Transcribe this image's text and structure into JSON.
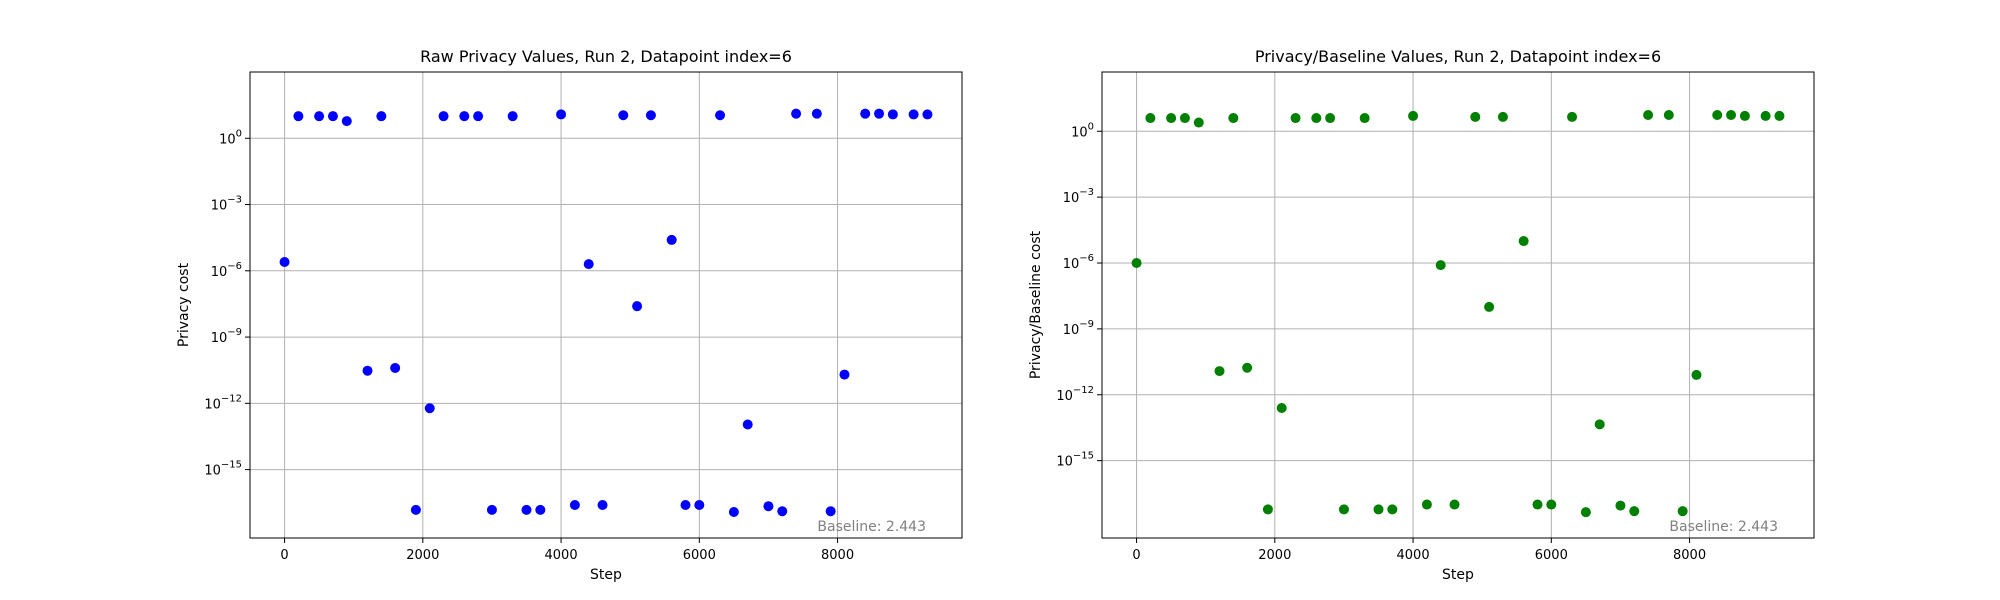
{
  "chart_data": [
    {
      "type": "scatter",
      "title": "Raw Privacy Values, Run 2, Datapoint index=6",
      "xlabel": "Step",
      "ylabel": "Privacy cost",
      "yscale": "log",
      "xlim": [
        -500,
        9800
      ],
      "ylim": [
        8e-19,
        1000
      ],
      "xticks": [
        0,
        2000,
        4000,
        6000,
        8000
      ],
      "xtick_labels": [
        "0",
        "2000",
        "4000",
        "6000",
        "8000"
      ],
      "yticks": [
        {
          "value": 1,
          "base": "10",
          "exp": "0"
        },
        {
          "value": 0.001,
          "base": "10",
          "exp": "−3"
        },
        {
          "value": 1e-06,
          "base": "10",
          "exp": "−6"
        },
        {
          "value": 1e-09,
          "base": "10",
          "exp": "−9"
        },
        {
          "value": 1e-12,
          "base": "10",
          "exp": "−12"
        },
        {
          "value": 1e-15,
          "base": "10",
          "exp": "−15"
        }
      ],
      "grid": true,
      "color": "#0000ff",
      "annotation": "Baseline: 2.443",
      "points": [
        {
          "x": 0,
          "y": 2.5e-06
        },
        {
          "x": 200,
          "y": 10
        },
        {
          "x": 500,
          "y": 10
        },
        {
          "x": 700,
          "y": 10
        },
        {
          "x": 900,
          "y": 6
        },
        {
          "x": 1200,
          "y": 3e-11
        },
        {
          "x": 1400,
          "y": 10
        },
        {
          "x": 1600,
          "y": 4e-11
        },
        {
          "x": 1900,
          "y": 1.5e-17
        },
        {
          "x": 2100,
          "y": 6e-13
        },
        {
          "x": 2300,
          "y": 10
        },
        {
          "x": 2600,
          "y": 10
        },
        {
          "x": 2800,
          "y": 10
        },
        {
          "x": 3000,
          "y": 1.5e-17
        },
        {
          "x": 3300,
          "y": 10
        },
        {
          "x": 3500,
          "y": 1.5e-17
        },
        {
          "x": 3700,
          "y": 1.5e-17
        },
        {
          "x": 4000,
          "y": 12
        },
        {
          "x": 4200,
          "y": 2.5e-17
        },
        {
          "x": 4400,
          "y": 2e-06
        },
        {
          "x": 4600,
          "y": 2.5e-17
        },
        {
          "x": 4900,
          "y": 11
        },
        {
          "x": 5100,
          "y": 2.5e-08
        },
        {
          "x": 5300,
          "y": 11
        },
        {
          "x": 5600,
          "y": 2.5e-05
        },
        {
          "x": 5800,
          "y": 2.5e-17
        },
        {
          "x": 6000,
          "y": 2.5e-17
        },
        {
          "x": 6300,
          "y": 11
        },
        {
          "x": 6500,
          "y": 1.2e-17
        },
        {
          "x": 6700,
          "y": 1.1e-13
        },
        {
          "x": 7000,
          "y": 2.2e-17
        },
        {
          "x": 7200,
          "y": 1.3e-17
        },
        {
          "x": 7400,
          "y": 13
        },
        {
          "x": 7700,
          "y": 13
        },
        {
          "x": 7900,
          "y": 1.3e-17
        },
        {
          "x": 8100,
          "y": 2e-11
        },
        {
          "x": 8400,
          "y": 13
        },
        {
          "x": 8600,
          "y": 13
        },
        {
          "x": 8800,
          "y": 12
        },
        {
          "x": 9100,
          "y": 12
        },
        {
          "x": 9300,
          "y": 12
        }
      ]
    },
    {
      "type": "scatter",
      "title": "Privacy/Baseline Values, Run 2, Datapoint index=6",
      "xlabel": "Step",
      "ylabel": "Privacy/Baseline cost",
      "yscale": "log",
      "xlim": [
        -500,
        9800
      ],
      "ylim": [
        3e-19,
        500
      ],
      "xticks": [
        0,
        2000,
        4000,
        6000,
        8000
      ],
      "xtick_labels": [
        "0",
        "2000",
        "4000",
        "6000",
        "8000"
      ],
      "yticks": [
        {
          "value": 1,
          "base": "10",
          "exp": "0"
        },
        {
          "value": 0.001,
          "base": "10",
          "exp": "−3"
        },
        {
          "value": 1e-06,
          "base": "10",
          "exp": "−6"
        },
        {
          "value": 1e-09,
          "base": "10",
          "exp": "−9"
        },
        {
          "value": 1e-12,
          "base": "10",
          "exp": "−12"
        },
        {
          "value": 1e-15,
          "base": "10",
          "exp": "−15"
        }
      ],
      "grid": true,
      "color": "#008000",
      "annotation": "Baseline: 2.443",
      "points": [
        {
          "x": 0,
          "y": 1e-06
        },
        {
          "x": 200,
          "y": 4
        },
        {
          "x": 500,
          "y": 4
        },
        {
          "x": 700,
          "y": 4
        },
        {
          "x": 900,
          "y": 2.5
        },
        {
          "x": 1200,
          "y": 1.2e-11
        },
        {
          "x": 1400,
          "y": 4
        },
        {
          "x": 1600,
          "y": 1.7e-11
        },
        {
          "x": 1900,
          "y": 6e-18
        },
        {
          "x": 2100,
          "y": 2.5e-13
        },
        {
          "x": 2300,
          "y": 4
        },
        {
          "x": 2600,
          "y": 4
        },
        {
          "x": 2800,
          "y": 4
        },
        {
          "x": 3000,
          "y": 6e-18
        },
        {
          "x": 3300,
          "y": 4
        },
        {
          "x": 3500,
          "y": 6e-18
        },
        {
          "x": 3700,
          "y": 6e-18
        },
        {
          "x": 4000,
          "y": 5
        },
        {
          "x": 4200,
          "y": 1e-17
        },
        {
          "x": 4400,
          "y": 8e-07
        },
        {
          "x": 4600,
          "y": 1e-17
        },
        {
          "x": 4900,
          "y": 4.5
        },
        {
          "x": 5100,
          "y": 1e-08
        },
        {
          "x": 5300,
          "y": 4.5
        },
        {
          "x": 5600,
          "y": 1e-05
        },
        {
          "x": 5800,
          "y": 1e-17
        },
        {
          "x": 6000,
          "y": 1e-17
        },
        {
          "x": 6300,
          "y": 4.5
        },
        {
          "x": 6500,
          "y": 4.5e-18
        },
        {
          "x": 6700,
          "y": 4.5e-14
        },
        {
          "x": 7000,
          "y": 9e-18
        },
        {
          "x": 7200,
          "y": 5e-18
        },
        {
          "x": 7400,
          "y": 5.5
        },
        {
          "x": 7700,
          "y": 5.5
        },
        {
          "x": 7900,
          "y": 5e-18
        },
        {
          "x": 8100,
          "y": 8e-12
        },
        {
          "x": 8400,
          "y": 5.5
        },
        {
          "x": 8600,
          "y": 5.5
        },
        {
          "x": 8800,
          "y": 5
        },
        {
          "x": 9100,
          "y": 5
        },
        {
          "x": 9300,
          "y": 5
        }
      ]
    }
  ]
}
